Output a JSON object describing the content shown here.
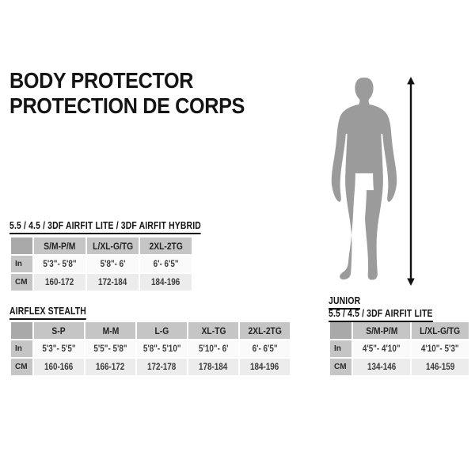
{
  "header": {
    "title_en": "BODY PROTECTOR",
    "title_fr": "PROTECTION DE CORPS"
  },
  "figure": {
    "silhouette_icon": "standing-person-silhouette",
    "arrow_icon": "height-measure-arrow",
    "silhouette_color": "#9b9b9b",
    "arrow_color": "#111111"
  },
  "colors": {
    "table_header_bg": "#c5c5c5",
    "table_corner_bg": "#a9a9a9",
    "row_in_bg": "#fafafa",
    "row_cm_bg": "#ececec",
    "text": "#141414"
  },
  "tables": [
    {
      "title": "5.5 / 4.5 / 3DF AIRFIT LITE / 3DF AIRFIT HYBRID",
      "columns": [
        "S/M-P/M",
        "L/XL-G/TG",
        "2XL-2TG"
      ],
      "rows": [
        {
          "label": "In",
          "values": [
            "5'3\"- 5'8\"",
            "5'8\"- 6'",
            "6'- 6'5\""
          ]
        },
        {
          "label": "CM",
          "values": [
            "160-172",
            "172-184",
            "184-196"
          ]
        }
      ]
    },
    {
      "title": "AIRFLEX STEALTH",
      "columns": [
        "S-P",
        "M-M",
        "L-G",
        "XL-TG",
        "2XL-2TG"
      ],
      "rows": [
        {
          "label": "In",
          "values": [
            "5'3\"- 5'5\"",
            "5'5\"- 5'8\"",
            "5'8\"- 5'10\"",
            "5'10\"- 6'",
            "6'- 6'5\""
          ]
        },
        {
          "label": "CM",
          "values": [
            "160-166",
            "166-172",
            "172-178",
            "178-184",
            "184-196"
          ]
        }
      ]
    },
    {
      "title_line1": "JUNIOR",
      "title_line2": "5.5 / 4.5 / 3DF AIRFIT LITE",
      "columns": [
        "S/M-P/M",
        "L/XL-G/TG"
      ],
      "rows": [
        {
          "label": "In",
          "values": [
            "4'5\"- 4'10\"",
            "4'10\"- 5'3\""
          ]
        },
        {
          "label": "CM",
          "values": [
            "134-146",
            "146-159"
          ]
        }
      ]
    }
  ]
}
